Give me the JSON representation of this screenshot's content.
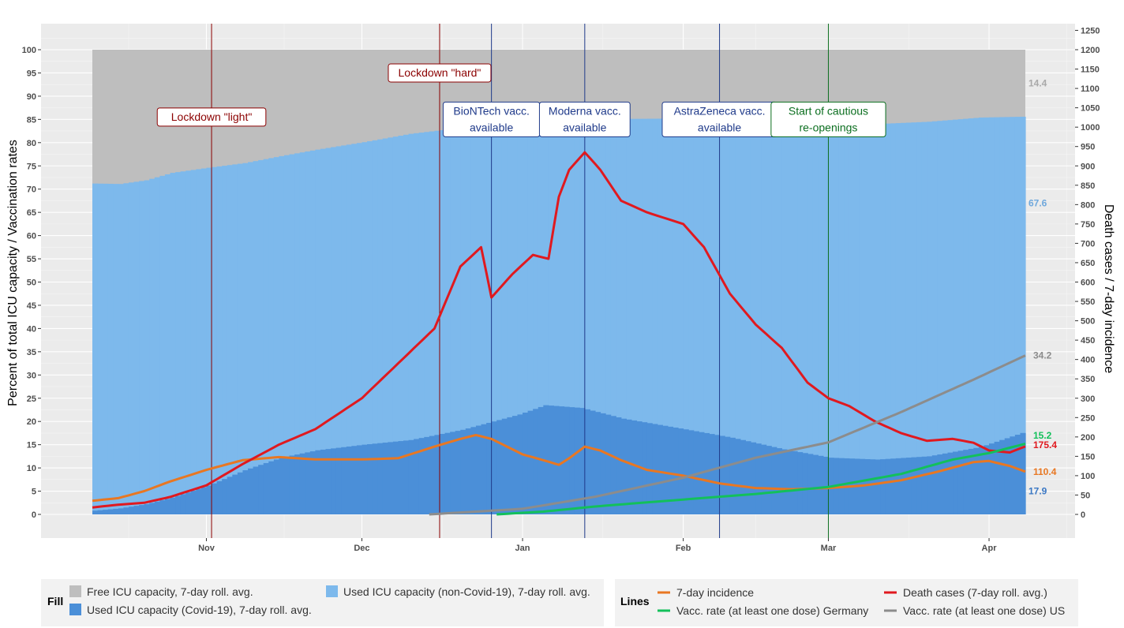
{
  "chart_data": {
    "type": "area",
    "y_left": {
      "label": "Percent of total ICU capacity / Vaccination rates",
      "lim": [
        0,
        100
      ],
      "ticks": [
        0,
        5,
        10,
        15,
        20,
        25,
        30,
        35,
        40,
        45,
        50,
        55,
        60,
        65,
        70,
        75,
        80,
        85,
        90,
        95,
        100
      ]
    },
    "y_right": {
      "label": "Death cases / 7-day incidence",
      "lim": [
        0,
        1250
      ],
      "ticks": [
        0,
        50,
        100,
        150,
        200,
        250,
        300,
        350,
        400,
        450,
        500,
        550,
        600,
        650,
        700,
        750,
        800,
        850,
        900,
        950,
        1000,
        1050,
        1100,
        1150,
        1200,
        1250
      ]
    },
    "x": {
      "start": "2020-10-10",
      "end": "2021-04-08",
      "ticks": [
        {
          "date": "2020-11-01",
          "label": "Nov"
        },
        {
          "date": "2020-12-01",
          "label": "Dec"
        },
        {
          "date": "2021-01-01",
          "label": "Jan"
        },
        {
          "date": "2021-02-01",
          "label": "Feb"
        },
        {
          "date": "2021-03-01",
          "label": "Mar"
        },
        {
          "date": "2021-04-01",
          "label": "Apr"
        }
      ]
    },
    "fills": [
      {
        "name": "Free ICU capacity, 7-day roll. avg.",
        "color": "#bebebe",
        "end_label": "14.4",
        "top": 100
      },
      {
        "name": "Used ICU capacity (non-Covid-19), 7-day roll. avg.",
        "color": "#7db9ec",
        "end_label": "67.6",
        "points": [
          [
            "2020-10-10",
            71.2
          ],
          [
            "2020-10-15",
            71.1
          ],
          [
            "2020-10-20",
            71.9
          ],
          [
            "2020-10-25",
            73.5
          ],
          [
            "2020-11-01",
            74.6
          ],
          [
            "2020-11-08",
            75.6
          ],
          [
            "2020-11-15",
            77.1
          ],
          [
            "2020-11-22",
            78.5
          ],
          [
            "2020-12-01",
            80.1
          ],
          [
            "2020-12-10",
            81.9
          ],
          [
            "2020-12-20",
            83.2
          ],
          [
            "2020-12-31",
            83.8
          ],
          [
            "2021-01-10",
            84.5
          ],
          [
            "2021-01-20",
            85.1
          ],
          [
            "2021-02-01",
            85.2
          ],
          [
            "2021-02-10",
            84.8
          ],
          [
            "2021-02-20",
            83.9
          ],
          [
            "2021-03-01",
            83.5
          ],
          [
            "2021-03-10",
            84.0
          ],
          [
            "2021-03-20",
            84.5
          ],
          [
            "2021-03-30",
            85.4
          ],
          [
            "2021-04-08",
            85.6
          ]
        ]
      },
      {
        "name": "Used ICU capacity (Covid-19), 7-day roll. avg.",
        "color": "#4b8fd8",
        "end_label": "17.9",
        "points": [
          [
            "2020-10-10",
            0.8
          ],
          [
            "2020-10-15",
            1.3
          ],
          [
            "2020-10-20",
            2.2
          ],
          [
            "2020-10-25",
            3.6
          ],
          [
            "2020-11-01",
            6.2
          ],
          [
            "2020-11-08",
            9.5
          ],
          [
            "2020-11-15",
            12.2
          ],
          [
            "2020-11-22",
            13.8
          ],
          [
            "2020-12-01",
            15.0
          ],
          [
            "2020-12-10",
            16.0
          ],
          [
            "2020-12-20",
            18.2
          ],
          [
            "2020-12-31",
            21.5
          ],
          [
            "2021-01-05",
            23.5
          ],
          [
            "2021-01-12",
            22.9
          ],
          [
            "2021-01-20",
            20.6
          ],
          [
            "2021-02-01",
            18.3
          ],
          [
            "2021-02-10",
            16.5
          ],
          [
            "2021-02-20",
            14.0
          ],
          [
            "2021-03-01",
            12.2
          ],
          [
            "2021-03-10",
            11.8
          ],
          [
            "2021-03-20",
            12.5
          ],
          [
            "2021-03-30",
            14.5
          ],
          [
            "2021-04-08",
            17.9
          ]
        ]
      }
    ],
    "lines": [
      {
        "name": "7-day incidence",
        "color": "#e87722",
        "axis": "right",
        "end_label": "110.4",
        "points": [
          [
            "2020-10-10",
            35
          ],
          [
            "2020-10-15",
            42
          ],
          [
            "2020-10-20",
            60
          ],
          [
            "2020-10-25",
            85
          ],
          [
            "2020-11-01",
            115
          ],
          [
            "2020-11-08",
            140
          ],
          [
            "2020-11-15",
            148
          ],
          [
            "2020-11-22",
            142
          ],
          [
            "2020-12-01",
            142
          ],
          [
            "2020-12-08",
            145
          ],
          [
            "2020-12-15",
            175
          ],
          [
            "2020-12-20",
            195
          ],
          [
            "2020-12-23",
            205
          ],
          [
            "2020-12-26",
            195
          ],
          [
            "2020-12-29",
            175
          ],
          [
            "2021-01-01",
            155
          ],
          [
            "2021-01-05",
            140
          ],
          [
            "2021-01-08",
            128
          ],
          [
            "2021-01-10",
            145
          ],
          [
            "2021-01-13",
            175
          ],
          [
            "2021-01-16",
            165
          ],
          [
            "2021-01-20",
            140
          ],
          [
            "2021-01-25",
            115
          ],
          [
            "2021-02-01",
            100
          ],
          [
            "2021-02-08",
            80
          ],
          [
            "2021-02-15",
            68
          ],
          [
            "2021-02-22",
            65
          ],
          [
            "2021-03-01",
            68
          ],
          [
            "2021-03-08",
            75
          ],
          [
            "2021-03-15",
            88
          ],
          [
            "2021-03-22",
            110
          ],
          [
            "2021-03-29",
            135
          ],
          [
            "2021-04-01",
            138
          ],
          [
            "2021-04-05",
            125
          ],
          [
            "2021-04-08",
            110.4
          ]
        ]
      },
      {
        "name": "Death cases (7-day roll. avg.)",
        "color": "#e0191f",
        "axis": "right",
        "end_label": "175.4",
        "points": [
          [
            "2020-10-10",
            18
          ],
          [
            "2020-10-15",
            25
          ],
          [
            "2020-10-20",
            30
          ],
          [
            "2020-10-25",
            45
          ],
          [
            "2020-11-01",
            75
          ],
          [
            "2020-11-08",
            130
          ],
          [
            "2020-11-15",
            180
          ],
          [
            "2020-11-22",
            220
          ],
          [
            "2020-12-01",
            300
          ],
          [
            "2020-12-08",
            390
          ],
          [
            "2020-12-15",
            480
          ],
          [
            "2020-12-20",
            640
          ],
          [
            "2020-12-24",
            690
          ],
          [
            "2020-12-26",
            560
          ],
          [
            "2020-12-30",
            620
          ],
          [
            "2021-01-03",
            670
          ],
          [
            "2021-01-06",
            660
          ],
          [
            "2021-01-08",
            820
          ],
          [
            "2021-01-10",
            890
          ],
          [
            "2021-01-13",
            935
          ],
          [
            "2021-01-16",
            890
          ],
          [
            "2021-01-20",
            810
          ],
          [
            "2021-01-25",
            780
          ],
          [
            "2021-02-01",
            750
          ],
          [
            "2021-02-05",
            690
          ],
          [
            "2021-02-10",
            570
          ],
          [
            "2021-02-15",
            490
          ],
          [
            "2021-02-20",
            430
          ],
          [
            "2021-02-25",
            340
          ],
          [
            "2021-03-01",
            300
          ],
          [
            "2021-03-05",
            280
          ],
          [
            "2021-03-10",
            240
          ],
          [
            "2021-03-15",
            210
          ],
          [
            "2021-03-20",
            190
          ],
          [
            "2021-03-25",
            195
          ],
          [
            "2021-03-29",
            185
          ],
          [
            "2021-04-01",
            165
          ],
          [
            "2021-04-05",
            160
          ],
          [
            "2021-04-08",
            175.4
          ]
        ]
      },
      {
        "name": "Vacc. rate (at least one dose) Germany",
        "color": "#13c05b",
        "axis": "left",
        "end_label": "15.2",
        "points": [
          [
            "2020-12-27",
            0
          ],
          [
            "2021-01-05",
            0.6
          ],
          [
            "2021-01-15",
            1.7
          ],
          [
            "2021-02-01",
            3.2
          ],
          [
            "2021-02-15",
            4.4
          ],
          [
            "2021-03-01",
            5.9
          ],
          [
            "2021-03-15",
            8.7
          ],
          [
            "2021-03-25",
            11.8
          ],
          [
            "2021-04-01",
            13.2
          ],
          [
            "2021-04-08",
            15.2
          ]
        ]
      },
      {
        "name": "Vacc. rate (at least one dose) US",
        "color": "#8c8c8c",
        "axis": "left",
        "end_label": "34.2",
        "points": [
          [
            "2020-12-14",
            0
          ],
          [
            "2021-01-01",
            1.2
          ],
          [
            "2021-01-15",
            3.8
          ],
          [
            "2021-02-01",
            7.9
          ],
          [
            "2021-02-15",
            12.2
          ],
          [
            "2021-03-01",
            15.5
          ],
          [
            "2021-03-15",
            22.0
          ],
          [
            "2021-03-29",
            29.0
          ],
          [
            "2021-04-08",
            34.2
          ]
        ]
      }
    ],
    "annotations": [
      {
        "date": "2020-11-02",
        "text": "Lockdown \"light\"",
        "color": "#8b0000",
        "y_pct": 85.5
      },
      {
        "date": "2020-12-16",
        "text": "Lockdown \"hard\"",
        "color": "#8b0000",
        "y_pct": 95
      },
      {
        "date": "2020-12-26",
        "text": "BioNTech vacc.\navailable",
        "color": "#1f3a8a",
        "y_pct": 85
      },
      {
        "date": "2021-01-13",
        "text": "Moderna vacc.\navailable",
        "color": "#1f3a8a",
        "y_pct": 85
      },
      {
        "date": "2021-02-08",
        "text": "AstraZeneca vacc.\navailable",
        "color": "#1f3a8a",
        "y_pct": 85
      },
      {
        "date": "2021-03-01",
        "text": "Start of cautious\nre-openings",
        "color": "#0b6e1f",
        "y_pct": 85
      }
    ],
    "legend_placement": "bottom",
    "grid": true
  },
  "legend": {
    "fill_title": "Fill",
    "lines_title": "Lines",
    "fill_items": [
      {
        "label": "Free ICU capacity, 7-day roll. avg.",
        "color": "#bebebe"
      },
      {
        "label": "Used ICU capacity (non-Covid-19), 7-day roll. avg.",
        "color": "#7db9ec"
      },
      {
        "label": "Used ICU capacity (Covid-19), 7-day roll. avg.",
        "color": "#4b8fd8"
      }
    ],
    "line_items": [
      {
        "label": "7-day incidence",
        "color": "#e87722"
      },
      {
        "label": "Death cases (7-day roll. avg.)",
        "color": "#e0191f"
      },
      {
        "label": "Vacc. rate (at least one dose) Germany",
        "color": "#13c05b"
      },
      {
        "label": "Vacc. rate (at least one dose) US",
        "color": "#8c8c8c"
      }
    ]
  }
}
